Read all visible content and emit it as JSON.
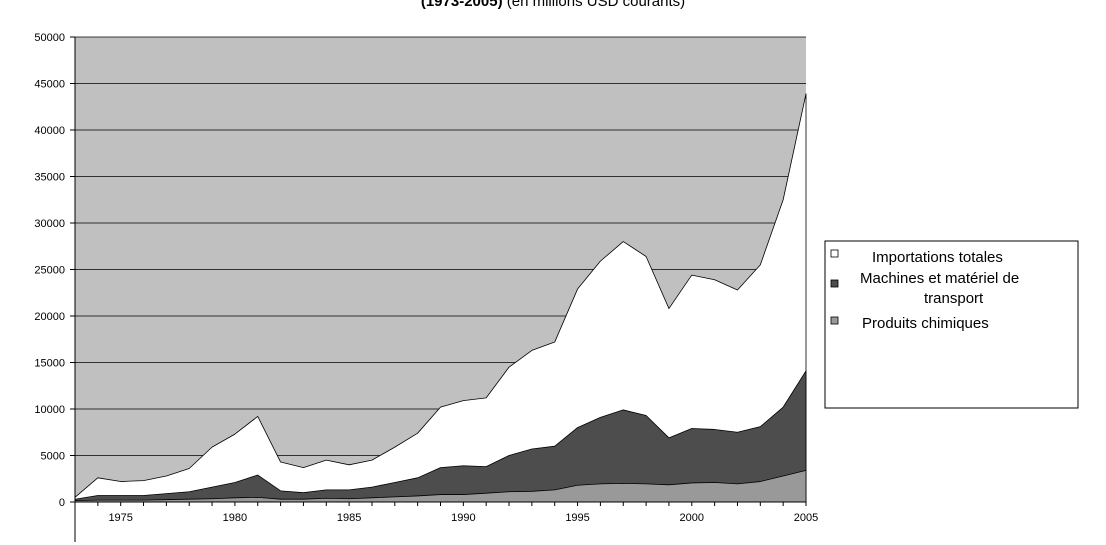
{
  "chart_data": {
    "type": "area",
    "title_bold": "(1973-2005)",
    "title_rest": " (en millions USD courants)",
    "xlabel": "",
    "ylabel": "",
    "x": [
      1973,
      1974,
      1975,
      1976,
      1977,
      1978,
      1979,
      1980,
      1981,
      1982,
      1983,
      1984,
      1985,
      1986,
      1987,
      1988,
      1989,
      1990,
      1991,
      1992,
      1993,
      1994,
      1995,
      1996,
      1997,
      1998,
      1999,
      2000,
      2001,
      2002,
      2003,
      2004,
      2005
    ],
    "x_tick_labels": [
      "1975",
      "1980",
      "1985",
      "1990",
      "1995",
      "2000",
      "2005"
    ],
    "x_ticks": [
      1975,
      1980,
      1985,
      1990,
      1995,
      2000,
      2005
    ],
    "xlim": [
      1973,
      2005
    ],
    "ylim": [
      0,
      50000
    ],
    "y_ticks": [
      0,
      5000,
      10000,
      15000,
      20000,
      25000,
      30000,
      35000,
      40000,
      45000,
      50000
    ],
    "y_tick_labels": [
      "0",
      "5000",
      "10000",
      "15000",
      "20000",
      "25000",
      "30000",
      "35000",
      "40000",
      "45000",
      "50000"
    ],
    "grid": "horizontal",
    "legend_position": "right",
    "series": [
      {
        "name": "Importations totales",
        "color": "#ffffff",
        "values": [
          500,
          2600,
          2200,
          2300,
          2800,
          3600,
          5900,
          7300,
          9200,
          4300,
          3700,
          4500,
          4000,
          4500,
          5900,
          7400,
          10200,
          10900,
          11200,
          14500,
          16300,
          17200,
          22900,
          25900,
          28000,
          26400,
          20800,
          24400,
          23900,
          22800,
          25500,
          32500,
          43900
        ]
      },
      {
        "name": "Machines et matériel de transport",
        "color": "#4d4d4d",
        "values": [
          300,
          700,
          700,
          700,
          900,
          1100,
          1600,
          2100,
          2900,
          1200,
          1000,
          1300,
          1300,
          1600,
          2100,
          2600,
          3700,
          3900,
          3800,
          5000,
          5700,
          6000,
          8000,
          9100,
          9900,
          9300,
          6900,
          7900,
          7800,
          7500,
          8100,
          10200,
          14100
        ]
      },
      {
        "name": "Produits chimiques",
        "color": "#999999",
        "values": [
          150,
          200,
          200,
          200,
          250,
          300,
          350,
          450,
          500,
          300,
          300,
          400,
          350,
          450,
          550,
          650,
          800,
          800,
          950,
          1100,
          1150,
          1300,
          1800,
          1950,
          2000,
          1950,
          1850,
          2050,
          2100,
          1950,
          2200,
          2800,
          3400
        ]
      }
    ],
    "legend_labels": [
      "Importations totales",
      "Machines et matériel de",
      "transport",
      "Produits chimiques"
    ]
  },
  "colors": {
    "plot_background": "#c0c0c0",
    "gridline": "#000000"
  }
}
